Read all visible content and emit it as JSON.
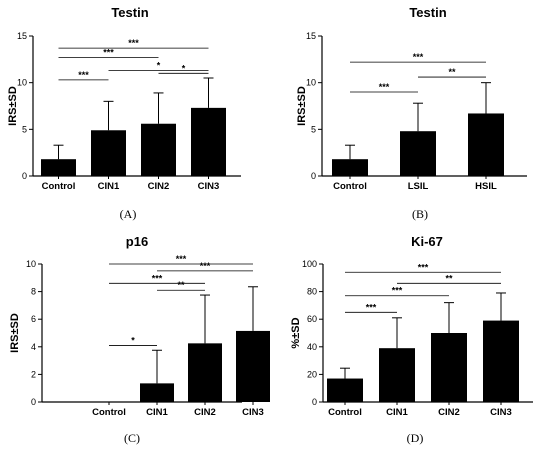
{
  "chart_data": [
    {
      "type": "bar",
      "panel_label": "(A)",
      "title": "Testin",
      "ylabel": "IRS±SD",
      "xlabel": "",
      "ylim": [
        0,
        15
      ],
      "yticks": [
        0,
        5,
        10,
        15
      ],
      "categories": [
        "Control",
        "CIN1",
        "CIN2",
        "CIN3"
      ],
      "values": [
        1.8,
        4.9,
        5.6,
        7.3
      ],
      "errors": [
        1.5,
        3.1,
        3.3,
        3.2
      ],
      "bar_color": "#000000",
      "significance": [
        {
          "from": 0,
          "to": 1,
          "label": "***"
        },
        {
          "from": 0,
          "to": 2,
          "label": "***"
        },
        {
          "from": 1,
          "to": 3,
          "label": "*"
        },
        {
          "from": 2,
          "to": 3,
          "label": "*"
        },
        {
          "from": 0,
          "to": 3,
          "label": "***"
        }
      ]
    },
    {
      "type": "bar",
      "panel_label": "(B)",
      "title": "Testin",
      "ylabel": "IRS±SD",
      "xlabel": "",
      "ylim": [
        0,
        15
      ],
      "yticks": [
        0,
        5,
        10,
        15
      ],
      "categories": [
        "Control",
        "LSIL",
        "HSIL"
      ],
      "values": [
        1.8,
        4.8,
        6.7
      ],
      "errors": [
        1.5,
        3.0,
        3.3
      ],
      "bar_color": "#000000",
      "significance": [
        {
          "from": 0,
          "to": 1,
          "label": "***"
        },
        {
          "from": 1,
          "to": 2,
          "label": "**"
        },
        {
          "from": 0,
          "to": 2,
          "label": "***"
        }
      ]
    },
    {
      "type": "bar",
      "panel_label": "(C)",
      "title": "p16",
      "ylabel": "IRS±SD",
      "xlabel": "",
      "ylim": [
        0,
        10
      ],
      "yticks": [
        0,
        2,
        4,
        6,
        8,
        10
      ],
      "categories": [
        "Control",
        "CIN1",
        "CIN2",
        "CIN3"
      ],
      "values": [
        0,
        1.35,
        4.25,
        5.15
      ],
      "errors": [
        0,
        2.4,
        3.5,
        3.2
      ],
      "bar_color": "#000000",
      "significance": [
        {
          "from": 0,
          "to": 1,
          "label": "*"
        },
        {
          "from": 1,
          "to": 2,
          "label": "**"
        },
        {
          "from": 0,
          "to": 2,
          "label": "***"
        },
        {
          "from": 1,
          "to": 3,
          "label": "***"
        },
        {
          "from": 0,
          "to": 3,
          "label": "***"
        }
      ]
    },
    {
      "type": "bar",
      "panel_label": "(D)",
      "title": "Ki-67",
      "ylabel": "%±SD",
      "xlabel": "",
      "ylim": [
        0,
        100
      ],
      "yticks": [
        0,
        20,
        40,
        60,
        80,
        100
      ],
      "categories": [
        "Control",
        "CIN1",
        "CIN2",
        "CIN3"
      ],
      "values": [
        17,
        39,
        50,
        59
      ],
      "errors": [
        7.5,
        22,
        22,
        20
      ],
      "bar_color": "#000000",
      "significance": [
        {
          "from": 0,
          "to": 1,
          "label": "***"
        },
        {
          "from": 0,
          "to": 2,
          "label": "***"
        },
        {
          "from": 1,
          "to": 3,
          "label": "**"
        },
        {
          "from": 0,
          "to": 3,
          "label": "***"
        }
      ]
    }
  ]
}
